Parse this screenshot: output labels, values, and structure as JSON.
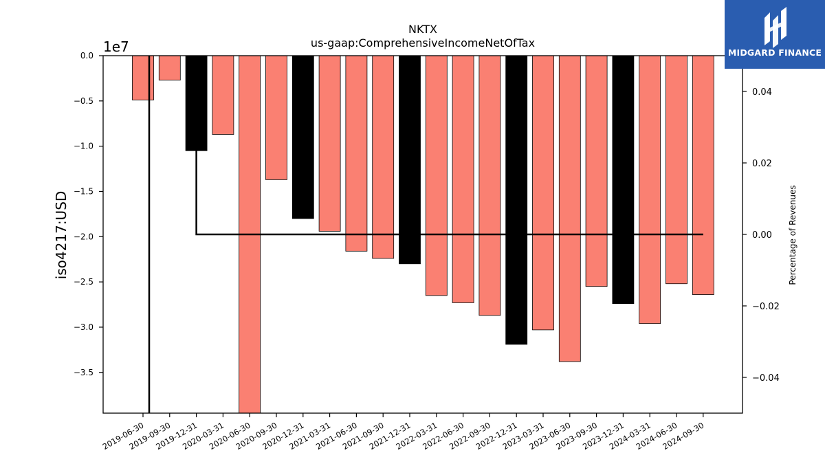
{
  "brand": {
    "name": "MIDGARD FINANCE",
    "background": "#2a5db0"
  },
  "chart_data": {
    "type": "bar",
    "title": "NKTX",
    "subtitle": "us-gaap:ComprehensiveIncomeNetOfTax",
    "ylabel": "iso4217:USD",
    "y2label": "Percentage of Revenues",
    "offset_label": "1e7",
    "ylim": [
      -3.95,
      0.0
    ],
    "y_unit_multiplier": 10000000,
    "y_ticks": [
      "0.0",
      "−0.5",
      "−1.0",
      "−1.5",
      "−2.0",
      "−2.5",
      "−3.0",
      "−3.5"
    ],
    "y2lim": [
      -0.05,
      0.05
    ],
    "y2_ticks": [
      "0.04",
      "0.02",
      "0.00",
      "−0.02",
      "−0.04"
    ],
    "categories": [
      "2019-06-30",
      "2019-09-30",
      "2019-12-31",
      "2020-03-31",
      "2020-06-30",
      "2020-09-30",
      "2020-12-31",
      "2021-03-31",
      "2021-06-30",
      "2021-09-30",
      "2021-12-31",
      "2022-03-31",
      "2022-06-30",
      "2022-09-30",
      "2022-12-31",
      "2023-03-31",
      "2023-06-30",
      "2023-09-30",
      "2023-12-31",
      "2024-03-31",
      "2024-06-30",
      "2024-09-30"
    ],
    "values": [
      -0.49,
      -0.27,
      -1.05,
      -0.87,
      -3.95,
      -1.37,
      -1.8,
      -1.94,
      -2.16,
      -2.24,
      -2.3,
      -2.65,
      -2.73,
      -2.87,
      -3.19,
      -3.03,
      -3.38,
      -2.55,
      -2.74,
      -2.96,
      -2.52,
      -2.64
    ],
    "bar_colors": [
      "#fa8072",
      "#fa8072",
      "#000000",
      "#fa8072",
      "#fa8072",
      "#fa8072",
      "#000000",
      "#fa8072",
      "#fa8072",
      "#fa8072",
      "#000000",
      "#fa8072",
      "#fa8072",
      "#fa8072",
      "#000000",
      "#fa8072",
      "#fa8072",
      "#fa8072",
      "#000000",
      "#fa8072",
      "#fa8072",
      "#fa8072"
    ],
    "percentage_line": {
      "x_start": "2019-12-31",
      "x_end": "2024-09-30",
      "value": 0.0,
      "color": "#000000"
    },
    "vertical_marker": {
      "x": "2019-06-30",
      "color": "#000000"
    }
  }
}
